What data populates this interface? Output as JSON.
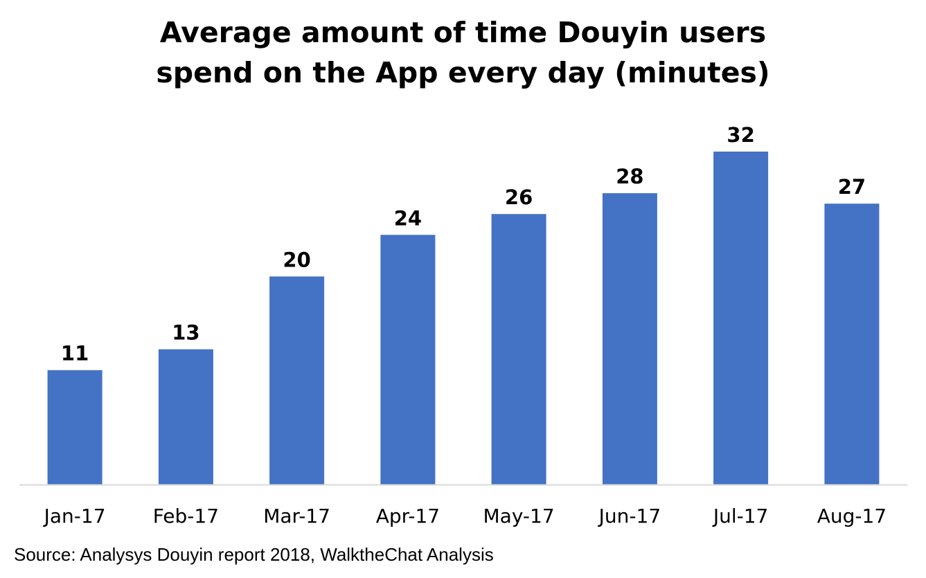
{
  "chart_data": {
    "type": "bar",
    "title_lines": [
      "Average amount of time Douyin users",
      "spend on the App every day (minutes)"
    ],
    "categories": [
      "Jan-17",
      "Feb-17",
      "Mar-17",
      "Apr-17",
      "May-17",
      "Jun-17",
      "Jul-17",
      "Aug-17"
    ],
    "values": [
      11,
      13,
      20,
      24,
      26,
      28,
      32,
      27
    ],
    "data_labels": [
      "11",
      "13",
      "20",
      "24",
      "26",
      "28",
      "32",
      "27"
    ],
    "ylim": [
      0,
      32
    ],
    "grid": false,
    "legend": "none",
    "bar_color": "#4472C4",
    "axis_color": "#D9D9D9"
  },
  "source": "Source: Analysys Douyin report 2018, WalktheChat Analysis"
}
